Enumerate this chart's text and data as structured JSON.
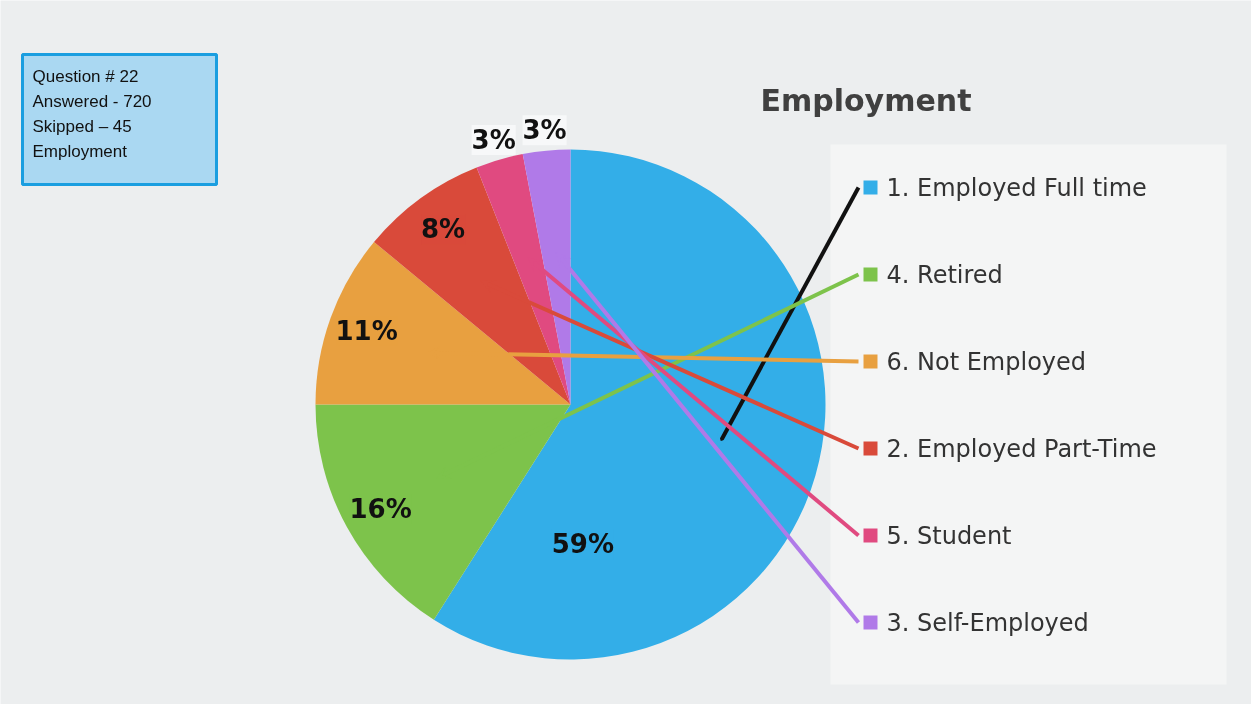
{
  "chart_data": {
    "type": "pie",
    "title": "Employment",
    "categories": [
      "1.  Employed Full time",
      "4.  Retired",
      "6.  Not Employed",
      "2.  Employed Part-Time",
      "5.  Student",
      "3.  Self-Employed"
    ],
    "values": [
      59,
      16,
      11,
      8,
      3,
      3
    ],
    "colors": [
      "#33aee8",
      "#7dc34b",
      "#e8a040",
      "#d94a3a",
      "#e04a80",
      "#b07ae8"
    ],
    "value_labels": [
      "59%",
      "16%",
      "11%",
      "8%",
      "3%",
      "3%"
    ],
    "legend": "right",
    "annotations": [
      "Question # 22",
      "Answered - 720",
      "Skipped – 45",
      "Employment"
    ]
  }
}
